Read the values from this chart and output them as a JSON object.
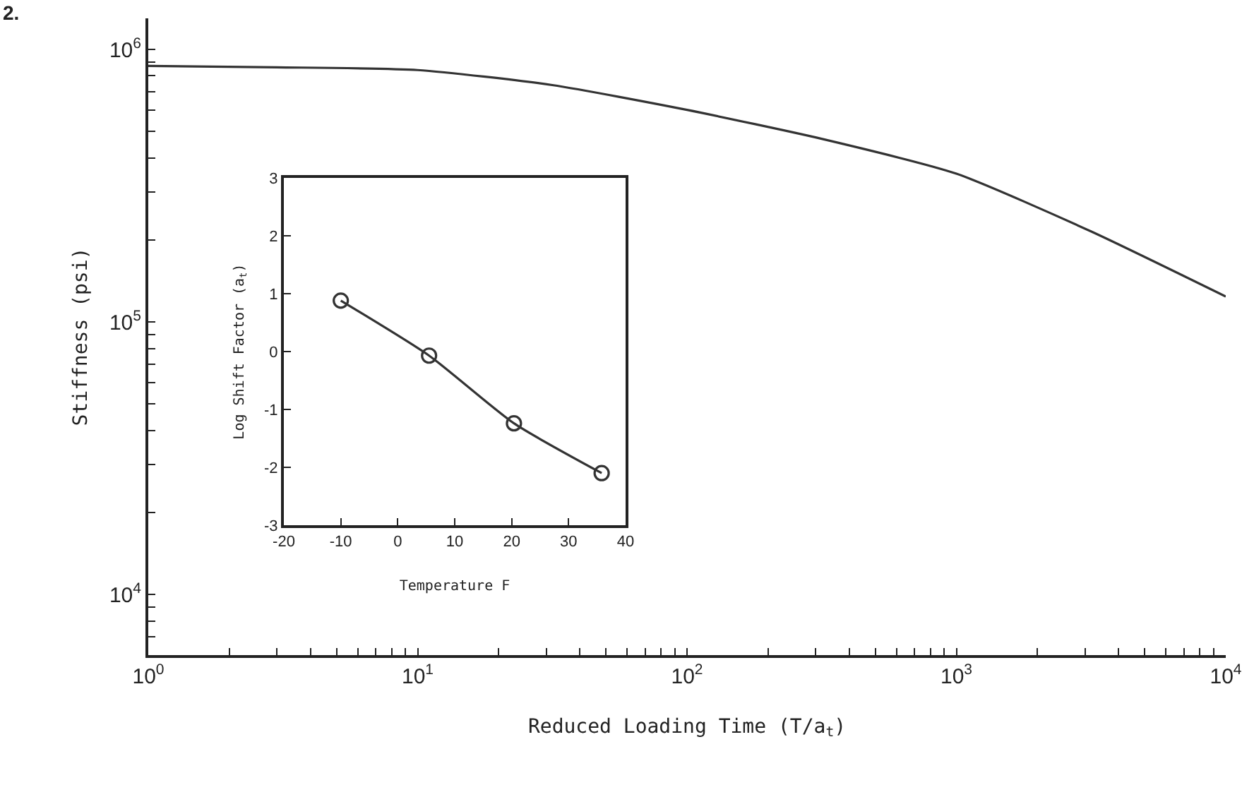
{
  "chart_data": [
    {
      "type": "line",
      "xlabel": "Reduced Loading Time (T/a$_{t}$)",
      "ylabel": "Stiffness (psi)",
      "annotations": [
        "2."
      ],
      "log": "xy",
      "grid": false,
      "legend": false,
      "marker": "none",
      "line_style": "solid",
      "xlim": [
        1,
        10000
      ],
      "ylim": [
        6000,
        1300000
      ],
      "xticks": [
        {
          "value": 1,
          "label": "10$^{0}$"
        },
        {
          "value": 2,
          "label": null
        },
        {
          "value": 3,
          "label": null
        },
        {
          "value": 4,
          "label": null
        },
        {
          "value": 5,
          "label": null
        },
        {
          "value": 6,
          "label": null
        },
        {
          "value": 7,
          "label": null
        },
        {
          "value": 8,
          "label": null
        },
        {
          "value": 9,
          "label": null
        },
        {
          "value": 10,
          "label": "10$^{1}$"
        },
        {
          "value": 20,
          "label": null
        },
        {
          "value": 30,
          "label": null
        },
        {
          "value": 40,
          "label": null
        },
        {
          "value": 50,
          "label": null
        },
        {
          "value": 60,
          "label": null
        },
        {
          "value": 70,
          "label": null
        },
        {
          "value": 80,
          "label": null
        },
        {
          "value": 90,
          "label": null
        },
        {
          "value": 100,
          "label": "10$^{2}$"
        },
        {
          "value": 200,
          "label": null
        },
        {
          "value": 300,
          "label": null
        },
        {
          "value": 400,
          "label": null
        },
        {
          "value": 500,
          "label": null
        },
        {
          "value": 600,
          "label": null
        },
        {
          "value": 700,
          "label": null
        },
        {
          "value": 800,
          "label": null
        },
        {
          "value": 900,
          "label": null
        },
        {
          "value": 1000,
          "label": "10$^{3}$"
        },
        {
          "value": 2000,
          "label": null
        },
        {
          "value": 3000,
          "label": null
        },
        {
          "value": 4000,
          "label": null
        },
        {
          "value": 5000,
          "label": null
        },
        {
          "value": 6000,
          "label": null
        },
        {
          "value": 7000,
          "label": null
        },
        {
          "value": 8000,
          "label": null
        },
        {
          "value": 9000,
          "label": null
        },
        {
          "value": 10000,
          "label": "10$^{4}$"
        }
      ],
      "yticks": [
        {
          "value": 7000,
          "label": null
        },
        {
          "value": 8000,
          "label": null
        },
        {
          "value": 9000,
          "label": null
        },
        {
          "value": 10000,
          "label": "10$^{4}$"
        },
        {
          "value": 20000,
          "label": null
        },
        {
          "value": 30000,
          "label": null
        },
        {
          "value": 40000,
          "label": null
        },
        {
          "value": 50000,
          "label": null
        },
        {
          "value": 60000,
          "label": null
        },
        {
          "value": 70000,
          "label": null
        },
        {
          "value": 80000,
          "label": null
        },
        {
          "value": 90000,
          "label": null
        },
        {
          "value": 100000,
          "label": "10$^{5}$"
        },
        {
          "value": 200000,
          "label": null
        },
        {
          "value": 300000,
          "label": null
        },
        {
          "value": 400000,
          "label": null
        },
        {
          "value": 500000,
          "label": null
        },
        {
          "value": 600000,
          "label": null
        },
        {
          "value": 700000,
          "label": null
        },
        {
          "value": 800000,
          "label": null
        },
        {
          "value": 900000,
          "label": null
        },
        {
          "value": 1000000,
          "label": "10$^{6}$"
        }
      ],
      "x": [
        1,
        3,
        10,
        31.6,
        100,
        316,
        1000,
        3160,
        10000
      ],
      "series": [
        {
          "color": "#333333",
          "values": [
            870000,
            860000,
            840000,
            740000,
            600000,
            470000,
            350000,
            215000,
            124000
          ]
        }
      ]
    },
    {
      "type": "line",
      "xlabel": "Temperature F",
      "ylabel": "Log Shift Factor (a$_{t}$)",
      "grid": false,
      "legend": false,
      "marker": "circle",
      "line_style": "solid",
      "xlim": [
        -20,
        40
      ],
      "ylim": [
        -3,
        3
      ],
      "xticks": [
        -20,
        -10,
        0,
        10,
        20,
        30,
        40
      ],
      "yticks": [
        -3,
        -2,
        -1,
        0,
        1,
        2,
        3
      ],
      "x": [
        -10,
        5.5,
        20.4,
        35.8
      ],
      "series": [
        {
          "color": "#333333",
          "values": [
            0.88,
            -0.07,
            -1.24,
            -2.1
          ]
        }
      ]
    }
  ]
}
